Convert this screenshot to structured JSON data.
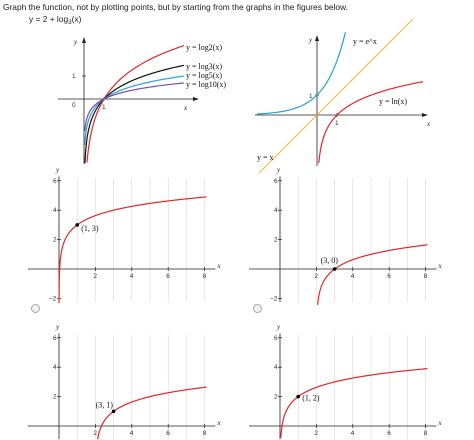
{
  "prompt": "Graph the function, not by plotting points, but by starting from the graphs in the figures below.",
  "equation": {
    "prefix": "y = 2 + log",
    "base": "3",
    "suffix": "(x)"
  },
  "colors": {
    "red": "#e3262b",
    "black": "#111111",
    "blue": "#2a9fd8",
    "purple": "#7a4fa3",
    "cyan": "#26a5c8",
    "orange": "#f7b23c",
    "dot": "#000000"
  },
  "reference_graph_1": {
    "axis_labels": {
      "x": "x",
      "y": "y"
    },
    "tick_labels": {
      "origin": "0",
      "x1": "1",
      "y1": "1"
    },
    "curve_labels": [
      "y = log2(x)",
      "y = log3(x)",
      "y = log5(x)",
      "y = log10(x)"
    ]
  },
  "reference_graph_2": {
    "axis_labels": {
      "x": "x",
      "y": "y"
    },
    "tick_labels": {
      "x1": "1",
      "y1": "1"
    },
    "curve_labels": {
      "exp": "y = e^x",
      "ln": "y = ln(x)",
      "identity": "y = x"
    }
  },
  "options": [
    {
      "point_label": "(1, 3)",
      "axis_labels": {
        "x": "x",
        "y": "y"
      },
      "x_ticks": [
        "2",
        "4",
        "6",
        "8"
      ],
      "y_ticks": [
        "6",
        "4",
        "2",
        "−2"
      ]
    },
    {
      "point_label": "(3, 0)",
      "axis_labels": {
        "x": "x",
        "y": "y"
      },
      "x_ticks": [
        "2",
        "4",
        "6",
        "8"
      ],
      "y_ticks": [
        "6",
        "4",
        "2",
        "−2"
      ]
    },
    {
      "point_label": "(3, 1)",
      "axis_labels": {
        "x": "x",
        "y": "y"
      },
      "x_ticks": [
        "2",
        "4",
        "6",
        "8"
      ],
      "y_ticks": [
        "6",
        "4",
        "2"
      ]
    },
    {
      "point_label": "(1, 2)",
      "axis_labels": {
        "x": "x",
        "y": "y"
      },
      "x_ticks": [
        "2",
        "4",
        "6",
        "8"
      ],
      "y_ticks": [
        "6",
        "4",
        "2"
      ]
    }
  ]
}
